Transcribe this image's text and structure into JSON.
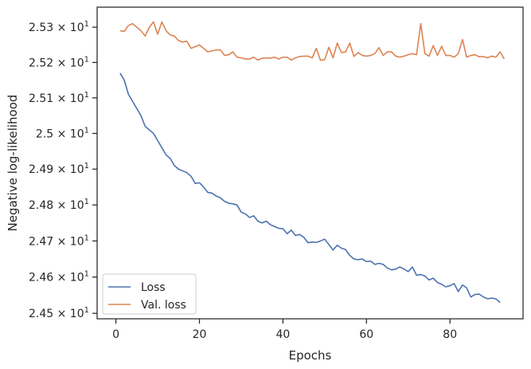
{
  "chart_data": {
    "type": "line",
    "title": "",
    "xlabel": "Epochs",
    "ylabel": "Negative log-likelihood",
    "yscale": "log",
    "xlim": [
      -4.5,
      97.5
    ],
    "ylim": [
      24.485,
      25.357
    ],
    "grid": false,
    "legend_position": "lower-left",
    "x_ticks": [
      0,
      20,
      40,
      60,
      80
    ],
    "y_ticks": [
      {
        "value": 24.5,
        "mantissa": "2.45",
        "base": "10",
        "exp": "1"
      },
      {
        "value": 24.6,
        "mantissa": "2.46",
        "base": "10",
        "exp": "1"
      },
      {
        "value": 24.7,
        "mantissa": "2.47",
        "base": "10",
        "exp": "1"
      },
      {
        "value": 24.8,
        "mantissa": "2.48",
        "base": "10",
        "exp": "1"
      },
      {
        "value": 24.9,
        "mantissa": "2.49",
        "base": "10",
        "exp": "1"
      },
      {
        "value": 25.0,
        "mantissa": "2.5",
        "base": "10",
        "exp": "1"
      },
      {
        "value": 25.1,
        "mantissa": "2.51",
        "base": "10",
        "exp": "1"
      },
      {
        "value": 25.2,
        "mantissa": "2.52",
        "base": "10",
        "exp": "1"
      },
      {
        "value": 25.3,
        "mantissa": "2.53",
        "base": "10",
        "exp": "1"
      }
    ],
    "times_symbol": "×",
    "x_start": 1,
    "series": [
      {
        "name": "Loss",
        "color": "#4c72b0",
        "values": [
          25.17,
          25.15,
          25.11,
          25.09,
          25.07,
          25.05,
          25.02,
          25.01,
          25.0,
          24.98,
          24.96,
          24.94,
          24.93,
          24.91,
          24.9,
          24.895,
          24.89,
          24.88,
          24.86,
          24.862,
          24.85,
          24.835,
          24.833,
          24.825,
          24.82,
          24.81,
          24.805,
          24.803,
          24.8,
          24.78,
          24.775,
          24.765,
          24.77,
          24.755,
          24.75,
          24.755,
          24.745,
          24.74,
          24.735,
          24.734,
          24.72,
          24.73,
          24.715,
          24.718,
          24.71,
          24.695,
          24.697,
          24.696,
          24.7,
          24.705,
          24.69,
          24.675,
          24.688,
          24.68,
          24.676,
          24.66,
          24.65,
          24.648,
          24.65,
          24.643,
          24.644,
          24.635,
          24.638,
          24.635,
          24.625,
          24.62,
          24.622,
          24.628,
          24.622,
          24.615,
          24.628,
          24.605,
          24.607,
          24.603,
          24.592,
          24.597,
          24.585,
          24.58,
          24.573,
          24.576,
          24.582,
          24.56,
          24.578,
          24.57,
          24.545,
          24.552,
          24.553,
          24.545,
          24.54,
          24.542,
          24.54,
          24.53
        ]
      },
      {
        "name": "Val. loss",
        "color": "#dd8452",
        "values": [
          25.29,
          25.288,
          25.305,
          25.31,
          25.3,
          25.29,
          25.275,
          25.3,
          25.315,
          25.28,
          25.315,
          25.29,
          25.278,
          25.275,
          25.262,
          25.258,
          25.26,
          25.24,
          25.245,
          25.25,
          25.24,
          25.23,
          25.233,
          25.235,
          25.236,
          25.22,
          25.222,
          25.23,
          25.215,
          25.213,
          25.21,
          25.21,
          25.215,
          25.207,
          25.212,
          25.213,
          25.212,
          25.215,
          25.21,
          25.215,
          25.215,
          25.207,
          25.213,
          25.217,
          25.218,
          25.218,
          25.213,
          25.24,
          25.206,
          25.208,
          25.243,
          25.213,
          25.255,
          25.228,
          25.23,
          25.255,
          25.217,
          25.228,
          25.22,
          25.218,
          25.22,
          25.225,
          25.242,
          25.22,
          25.23,
          25.23,
          25.218,
          25.215,
          25.218,
          25.222,
          25.225,
          25.222,
          25.31,
          25.225,
          25.218,
          25.248,
          25.22,
          25.246,
          25.22,
          25.22,
          25.215,
          25.225,
          25.265,
          25.215,
          25.22,
          25.222,
          25.216,
          25.217,
          25.213,
          25.218,
          25.215,
          25.23,
          25.21
        ]
      }
    ]
  }
}
